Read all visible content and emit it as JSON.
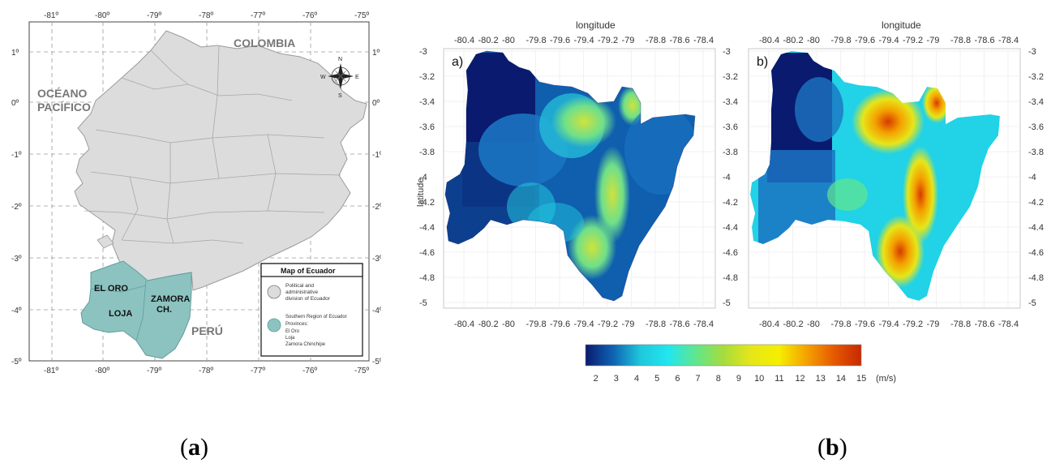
{
  "left_map": {
    "caption": "a",
    "lon_ticks": [
      "-81º",
      "-80º",
      "-79º",
      "-78º",
      "-77º",
      "-76º",
      "-75º"
    ],
    "lat_ticks": [
      "1º",
      "0º",
      "-1º",
      "-2º",
      "-3º",
      "-4º",
      "-5º"
    ],
    "labels": {
      "colombia": "COLOMBIA",
      "ocean_line1": "OCÉANO",
      "ocean_line2": "PACÍFICO",
      "peru": "PERÚ",
      "el_oro": "EL ORO",
      "loja": "LOJA",
      "zamora_line1": "ZAMORA",
      "zamora_line2": "CH."
    },
    "compass": {
      "n": "N",
      "s": "S",
      "e": "E",
      "w": "W"
    },
    "legend": {
      "title": "Map of Ecuador",
      "item1_lines": [
        "Political and",
        "administrative",
        "division of Ecuador"
      ],
      "item2_lines": [
        "Southern Region of Ecuador",
        "Provinces:",
        "El Oro",
        "Loja",
        "Zamora Chinchipe"
      ],
      "item1_color": "#dcdcdc",
      "item2_color": "#8cc3c0"
    }
  },
  "right_maps": {
    "caption": "b",
    "xlabel": "longitude",
    "ylabel": "latitude",
    "lon_ticks": [
      "-80.4",
      "-80.2",
      "-80",
      "-79.8",
      "-79.6",
      "-79.4",
      "-79.2",
      "-79",
      "-78.8",
      "-78.6",
      "-78.4"
    ],
    "lat_ticks": [
      "-3",
      "-3.2",
      "-3.4",
      "-3.6",
      "-3.8",
      "-4",
      "-4.2",
      "-4.4",
      "-4.6",
      "-4.8",
      "-5"
    ],
    "panel_a_label": "a)",
    "panel_b_label": "b)",
    "colorbar": {
      "ticks": [
        "2",
        "3",
        "4",
        "5",
        "6",
        "7",
        "8",
        "9",
        "10",
        "11",
        "12",
        "13",
        "14",
        "15"
      ],
      "unit": "(m/s)",
      "range": [
        1.5,
        15
      ],
      "colors": [
        "#0a1a6e",
        "#0f63b3",
        "#1ec8dc",
        "#22e6ef",
        "#61e68c",
        "#a6dc3c",
        "#e6e619",
        "#f5ef00",
        "#f5a300",
        "#e65a00",
        "#c82800"
      ]
    }
  }
}
